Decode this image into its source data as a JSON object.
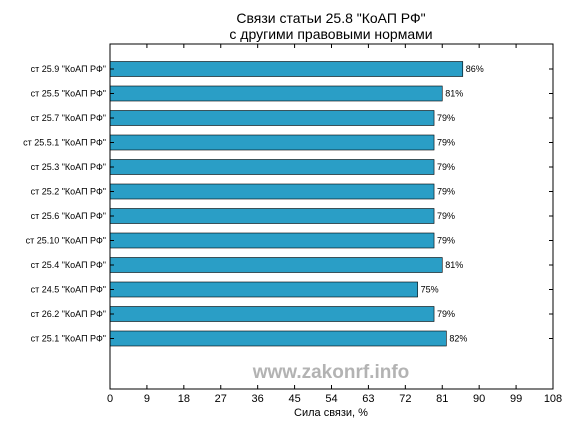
{
  "chart_data": {
    "type": "bar",
    "orientation": "horizontal",
    "title_lines": [
      "Связи статьи 25.8 \"КоАП РФ\"",
      "с другими правовыми нормами"
    ],
    "xlabel": "Сила связи, %",
    "ylabel": "",
    "categories": [
      "ст 25.9 \"КоАП РФ\"",
      "ст 25.5 \"КоАП РФ\"",
      "ст 25.7 \"КоАП РФ\"",
      "ст 25.5.1 \"КоАП РФ\"",
      "ст 25.3 \"КоАП РФ\"",
      "ст 25.2 \"КоАП РФ\"",
      "ст 25.6 \"КоАП РФ\"",
      "ст 25.10 \"КоАП РФ\"",
      "ст 25.4 \"КоАП РФ\"",
      "ст 24.5 \"КоАП РФ\"",
      "ст 26.2 \"КоАП РФ\"",
      "ст 25.1 \"КоАП РФ\""
    ],
    "values": [
      86,
      81,
      79,
      79,
      79,
      79,
      79,
      79,
      81,
      75,
      79,
      82
    ],
    "value_labels": [
      "86%",
      "81%",
      "79%",
      "79%",
      "79%",
      "79%",
      "79%",
      "79%",
      "81%",
      "75%",
      "79%",
      "82%"
    ],
    "xlim": [
      0,
      108
    ],
    "xticks": [
      0,
      9,
      18,
      27,
      36,
      45,
      54,
      63,
      72,
      81,
      90,
      99,
      108
    ],
    "grid": false,
    "bar_color": "#2a9ec6",
    "watermark": "www.zakonrf.info"
  }
}
